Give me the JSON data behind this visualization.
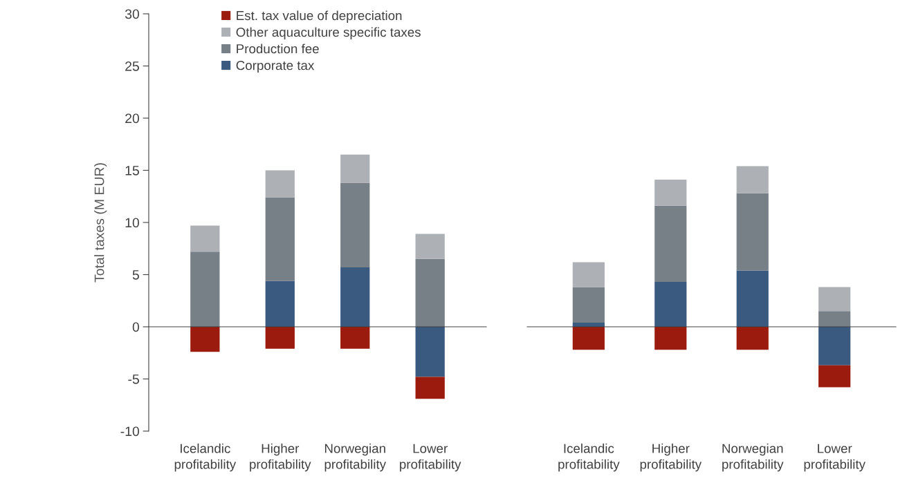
{
  "chart_data": [
    {
      "type": "bar",
      "stacked": true,
      "ylabel": "Total taxes (M EUR)",
      "categories": [
        "Icelandic\nprofitability",
        "Higher\nprofitability",
        "Norwegian\nprofitability",
        "Lower\nprofitability"
      ],
      "ylim": [
        -10,
        30
      ],
      "yticks": [
        -10,
        -5,
        0,
        5,
        10,
        15,
        20,
        25,
        30
      ],
      "legend": "top left",
      "series": [
        {
          "name": "Corporate tax",
          "color": "#3b5a7f",
          "values": [
            0,
            4.4,
            5.7,
            -4.8
          ]
        },
        {
          "name": "Production fee",
          "color": "#777f87",
          "values": [
            7.2,
            8.0,
            8.1,
            6.5
          ]
        },
        {
          "name": "Other aquaculture specific taxes",
          "color": "#adb1b6",
          "values": [
            2.5,
            2.6,
            2.7,
            2.4
          ]
        },
        {
          "name": "Est. tax value of depreciation",
          "color": "#9b1b0e",
          "values": [
            -2.4,
            -2.1,
            -2.1,
            -2.1
          ]
        }
      ]
    },
    {
      "type": "bar",
      "stacked": true,
      "categories": [
        "Icelandic\nprofitability",
        "Higher\nprofitability",
        "Norwegian\nprofitability",
        "Lower\nprofitability"
      ],
      "ylim": [
        -10,
        30
      ],
      "tick_labels": "x",
      "series": [
        {
          "color": "#3b5a7f",
          "values": [
            0.4,
            4.3,
            5.4,
            -3.7
          ]
        },
        {
          "color": "#777f87",
          "values": [
            3.4,
            7.3,
            7.4,
            1.5
          ]
        },
        {
          "color": "#adb1b6",
          "values": [
            2.4,
            2.5,
            2.6,
            2.3
          ]
        },
        {
          "color": "#9b1b0e",
          "values": [
            -2.2,
            -2.2,
            -2.2,
            -2.1
          ]
        }
      ]
    }
  ]
}
